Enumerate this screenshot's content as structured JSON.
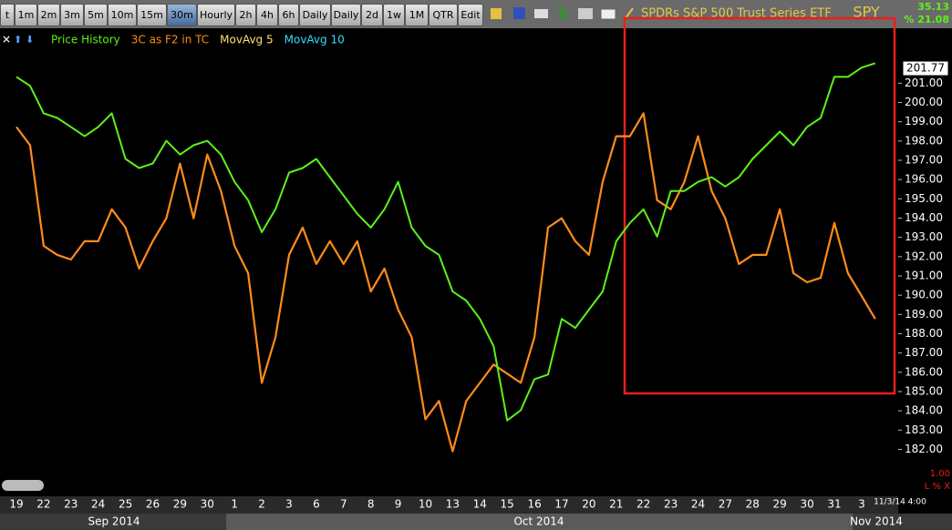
{
  "toolbar": {
    "buttons": [
      "t",
      "1m",
      "2m",
      "3m",
      "5m",
      "10m",
      "15m",
      "30m",
      "Hourly",
      "2h",
      "4h",
      "6h",
      "Daily",
      "Daily",
      "2d",
      "1w",
      "1M",
      "QTR",
      "Edit"
    ],
    "selected": 7,
    "security": "SPDRs S&P 500 Trust Series ETF",
    "symbol": "SPY",
    "top_value": "35.13",
    "top_percent": "% 21.08"
  },
  "chart_data": {
    "type": "line",
    "categories": [
      "19",
      null,
      "22",
      null,
      "23",
      null,
      "24",
      null,
      "25",
      null,
      "26",
      null,
      "29",
      null,
      "30",
      null,
      "1",
      null,
      "2",
      null,
      "3",
      null,
      "6",
      null,
      "7",
      null,
      "8",
      null,
      "9",
      null,
      "10",
      null,
      "13",
      null,
      "14",
      null,
      "15",
      null,
      "16",
      null,
      "17",
      null,
      "20",
      null,
      "21",
      null,
      "22",
      null,
      "23",
      null,
      "24",
      null,
      "27",
      null,
      "28",
      null,
      "29",
      null,
      "30",
      null,
      "31",
      null,
      "3",
      null
    ],
    "months": [
      "Sep 2014",
      "Oct 2014",
      "Nov 2014"
    ],
    "series": [
      {
        "name": "Price History",
        "color": "#5cf21a",
        "values": [
          201.33,
          200.86,
          199.44,
          199.2,
          198.73,
          198.25,
          198.73,
          199.44,
          197.07,
          196.6,
          196.83,
          198.01,
          197.3,
          197.78,
          198.01,
          197.3,
          195.88,
          194.93,
          193.27,
          194.46,
          196.36,
          196.6,
          197.07,
          196.12,
          195.17,
          194.22,
          193.51,
          194.46,
          195.88,
          193.51,
          192.56,
          192.09,
          190.19,
          189.72,
          188.77,
          187.35,
          183.5,
          184.03,
          185.64,
          185.88,
          188.77,
          188.3,
          189.25,
          190.19,
          192.8,
          193.75,
          194.46,
          193.04,
          195.41,
          195.41,
          195.88,
          196.12,
          195.64,
          196.12,
          197.07,
          197.78,
          198.49,
          197.78,
          198.73,
          199.2,
          201.33,
          201.33,
          201.81,
          202.04
        ]
      },
      {
        "name": "3C as F2 in TC",
        "color": "#ff8c1a",
        "values": [
          198.73,
          197.78,
          192.56,
          192.09,
          191.85,
          192.8,
          192.8,
          194.46,
          193.51,
          191.38,
          192.8,
          193.99,
          196.83,
          193.99,
          197.3,
          195.41,
          192.56,
          191.14,
          185.45,
          187.82,
          192.09,
          193.51,
          191.62,
          192.8,
          191.62,
          192.8,
          190.19,
          191.38,
          189.25,
          187.82,
          183.56,
          184.51,
          181.9,
          184.51,
          185.45,
          186.4,
          185.93,
          185.45,
          187.82,
          193.51,
          193.99,
          192.8,
          192.09,
          195.88,
          198.25,
          198.25,
          199.44,
          194.93,
          194.46,
          195.88,
          198.25,
          195.41,
          193.99,
          191.62,
          192.09,
          192.09,
          194.46,
          191.14,
          190.67,
          190.9,
          193.75,
          191.14,
          189.96,
          188.77
        ]
      }
    ],
    "legend_extra": [
      {
        "name": "MovAvg 5",
        "color": "#ffe066"
      },
      {
        "name": "MovAvg 10",
        "color": "#33ddff"
      }
    ],
    "ylim": [
      179.8,
      203.9
    ],
    "yticks": [
      {
        "value": 182,
        "label": "182.00"
      },
      {
        "value": 183,
        "label": "183.00"
      },
      {
        "value": 184,
        "label": "184.00"
      },
      {
        "value": 185,
        "label": "185.00"
      },
      {
        "value": 186,
        "label": "186.00"
      },
      {
        "value": 187,
        "label": "187.00"
      },
      {
        "value": 188,
        "label": "188.00"
      },
      {
        "value": 189,
        "label": "189.00"
      },
      {
        "value": 190,
        "label": "190.00"
      },
      {
        "value": 191,
        "label": "191.00"
      },
      {
        "value": 192,
        "label": "192.00"
      },
      {
        "value": 193,
        "label": "193.00"
      },
      {
        "value": 194,
        "label": "194.00"
      },
      {
        "value": 195,
        "label": "195.00"
      },
      {
        "value": 196,
        "label": "196.00"
      },
      {
        "value": 197,
        "label": "197.00"
      },
      {
        "value": 198,
        "label": "198.00"
      },
      {
        "value": 199,
        "label": "199.00"
      },
      {
        "value": 200,
        "label": "200.00"
      },
      {
        "value": 201,
        "label": "201.00"
      }
    ],
    "last_price": 201.77,
    "timestamp": "11/3/14 4:00",
    "lower_value": "1.00",
    "lower_controls": "L % X"
  }
}
